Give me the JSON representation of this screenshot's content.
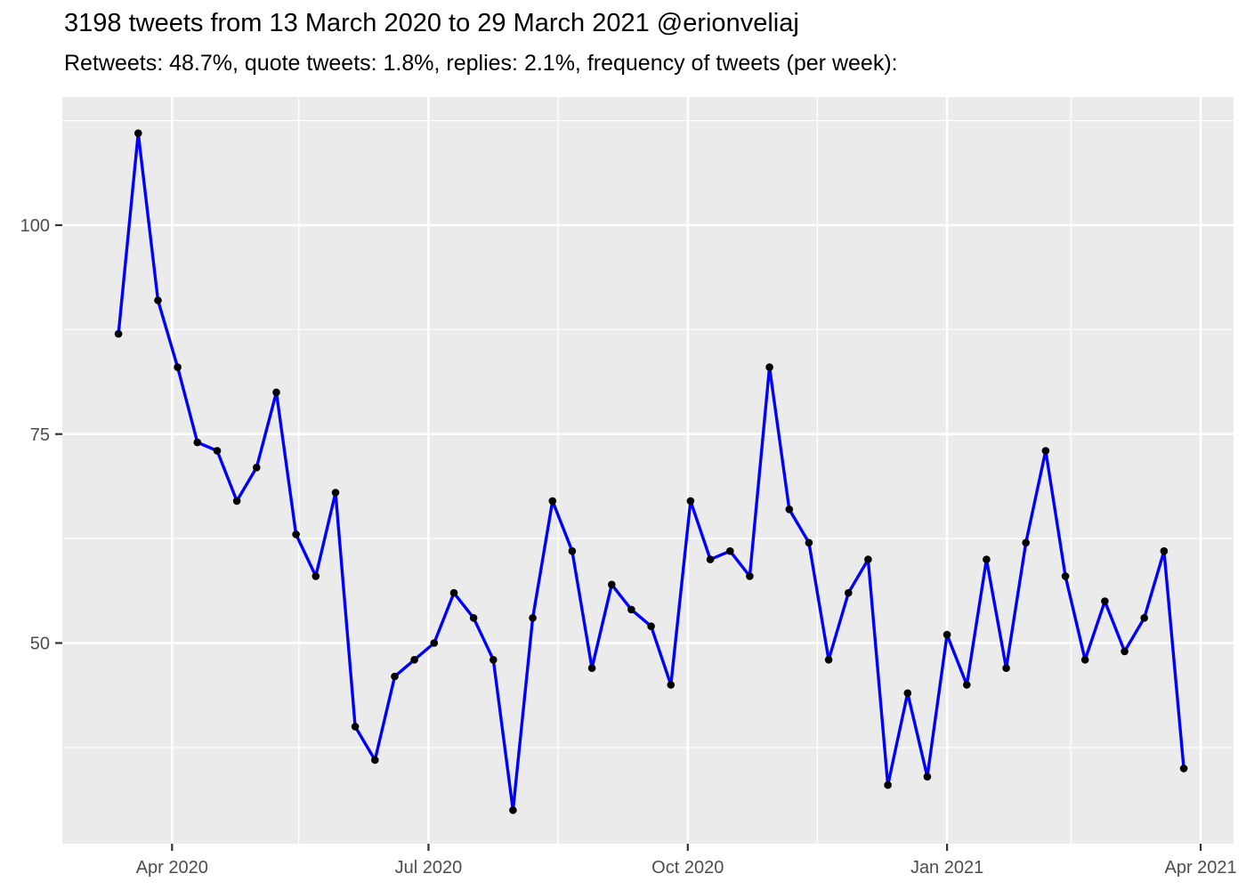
{
  "header": {
    "title": "3198 tweets from 13 March 2020 to 29 March 2021 @erionveliaj",
    "subtitle": "Retweets: 48.7%, quote tweets: 1.8%, replies: 2.1%, frequency of tweets (per week):"
  },
  "chart_data": {
    "type": "line",
    "title": "3198 tweets from 13 March 2020 to 29 March 2021 @erionveliaj",
    "subtitle": "Retweets: 48.7%, quote tweets: 1.8%, replies: 2.1%, frequency of tweets (per week):",
    "series_name": "tweets-per-week",
    "total_tweets": 3198,
    "x": [
      "2020-03-13",
      "2020-03-20",
      "2020-03-27",
      "2020-04-03",
      "2020-04-10",
      "2020-04-17",
      "2020-04-24",
      "2020-05-01",
      "2020-05-08",
      "2020-05-15",
      "2020-05-22",
      "2020-05-29",
      "2020-06-05",
      "2020-06-12",
      "2020-06-19",
      "2020-06-26",
      "2020-07-03",
      "2020-07-10",
      "2020-07-17",
      "2020-07-24",
      "2020-07-31",
      "2020-08-07",
      "2020-08-14",
      "2020-08-21",
      "2020-08-28",
      "2020-09-04",
      "2020-09-11",
      "2020-09-18",
      "2020-09-25",
      "2020-10-02",
      "2020-10-09",
      "2020-10-16",
      "2020-10-23",
      "2020-10-30",
      "2020-11-06",
      "2020-11-13",
      "2020-11-20",
      "2020-11-27",
      "2020-12-04",
      "2020-12-11",
      "2020-12-18",
      "2020-12-25",
      "2021-01-01",
      "2021-01-08",
      "2021-01-15",
      "2021-01-22",
      "2021-01-29",
      "2021-02-05",
      "2021-02-12",
      "2021-02-19",
      "2021-02-26",
      "2021-03-05",
      "2021-03-12",
      "2021-03-19",
      "2021-03-26"
    ],
    "values": [
      87,
      111,
      91,
      83,
      74,
      73,
      67,
      71,
      80,
      63,
      58,
      68,
      40,
      36,
      46,
      48,
      50,
      56,
      53,
      48,
      30,
      53,
      67,
      61,
      47,
      57,
      54,
      52,
      45,
      67,
      60,
      61,
      58,
      83,
      66,
      62,
      48,
      56,
      60,
      33,
      44,
      34,
      51,
      45,
      60,
      47,
      62,
      73,
      58,
      48,
      55,
      49,
      53,
      61,
      35
    ],
    "xlabel": "",
    "ylabel": "",
    "ylim": [
      26,
      115.5
    ],
    "grid": true,
    "legend_position": "none",
    "y_ticks": [
      {
        "label": "50",
        "value": 50
      },
      {
        "label": "75",
        "value": 75
      },
      {
        "label": "100",
        "value": 100
      }
    ],
    "y_minor_ticks": [
      37.5,
      62.5,
      87.5,
      112.5
    ],
    "x_ticks": [
      {
        "label": "Apr 2020",
        "date": "2020-04-01"
      },
      {
        "label": "Jul 2020",
        "date": "2020-07-01"
      },
      {
        "label": "Oct 2020",
        "date": "2020-10-01"
      },
      {
        "label": "Jan 2021",
        "date": "2021-01-01"
      },
      {
        "label": "Apr 2021",
        "date": "2021-04-01"
      }
    ],
    "x_minor_tick_dates": [
      "2020-05-16",
      "2020-08-16",
      "2020-11-16",
      "2021-02-14"
    ],
    "colors": {
      "line": "#0000FF",
      "point": "#000000",
      "panel_bg": "#EBEBEB",
      "gridline": "#FFFFFF",
      "axis_text": "#4D4D4D",
      "tick_mark": "#333333",
      "title_text": "#000000"
    }
  }
}
